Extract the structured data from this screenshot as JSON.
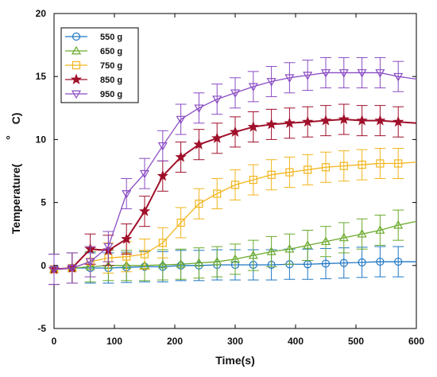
{
  "chart_data": {
    "type": "line",
    "title": "",
    "xlabel": "Time(s)",
    "ylabel_parts": [
      "Temperature(",
      "°",
      "C)"
    ],
    "xlim": [
      0,
      600
    ],
    "ylim": [
      -5,
      20
    ],
    "xticks": [
      "0",
      "100",
      "200",
      "300",
      "400",
      "500",
      "600"
    ],
    "yticks": [
      "-5",
      "0",
      "5",
      "10",
      "15",
      "20"
    ],
    "legend_position": "top-left",
    "grid": false,
    "error_bar": 1.2,
    "series": [
      {
        "name": "550 g",
        "color": "#1f77c4",
        "marker": "circle",
        "x": [
          0,
          30,
          60,
          90,
          120,
          150,
          180,
          210,
          240,
          270,
          300,
          330,
          360,
          390,
          420,
          450,
          480,
          510,
          540,
          570,
          600
        ],
        "y": [
          -0.3,
          -0.2,
          -0.2,
          -0.2,
          -0.15,
          -0.1,
          -0.1,
          0.0,
          0.0,
          0.05,
          0.05,
          0.05,
          0.05,
          0.1,
          0.1,
          0.15,
          0.2,
          0.25,
          0.3,
          0.3,
          0.3
        ],
        "marker_x": [
          0,
          30,
          60,
          90,
          120,
          150,
          180,
          210,
          240,
          270,
          300,
          330,
          360,
          390,
          420,
          450,
          480,
          510,
          540,
          570
        ],
        "marker_y": [
          -0.3,
          -0.2,
          -0.2,
          -0.2,
          -0.15,
          -0.1,
          -0.1,
          0.0,
          0.0,
          0.05,
          0.05,
          0.05,
          0.05,
          0.1,
          0.1,
          0.15,
          0.2,
          0.25,
          0.3,
          0.3
        ]
      },
      {
        "name": "650 g",
        "color": "#6aaa2c",
        "marker": "triangle-up",
        "x": [
          0,
          30,
          60,
          90,
          120,
          150,
          180,
          210,
          240,
          270,
          300,
          330,
          360,
          390,
          420,
          450,
          480,
          510,
          540,
          570,
          600
        ],
        "y": [
          -0.3,
          -0.2,
          -0.1,
          0.0,
          0.0,
          0.0,
          0.05,
          0.1,
          0.2,
          0.3,
          0.5,
          0.8,
          1.1,
          1.3,
          1.6,
          1.9,
          2.2,
          2.5,
          2.8,
          3.2,
          3.5
        ],
        "marker_x": [
          0,
          30,
          60,
          90,
          120,
          150,
          180,
          210,
          240,
          270,
          300,
          330,
          360,
          390,
          420,
          450,
          480,
          510,
          540,
          570
        ],
        "marker_y": [
          -0.3,
          -0.2,
          -0.1,
          0.0,
          0.0,
          0.0,
          0.05,
          0.1,
          0.2,
          0.3,
          0.5,
          0.8,
          1.1,
          1.3,
          1.6,
          1.9,
          2.2,
          2.5,
          2.8,
          3.2
        ]
      },
      {
        "name": "750 g",
        "color": "#f2b51c",
        "marker": "square",
        "x": [
          0,
          30,
          60,
          90,
          120,
          150,
          180,
          210,
          240,
          270,
          300,
          330,
          360,
          390,
          420,
          450,
          480,
          510,
          540,
          570,
          600
        ],
        "y": [
          -0.3,
          -0.2,
          0.3,
          0.6,
          0.7,
          0.9,
          1.8,
          3.4,
          4.9,
          5.7,
          6.4,
          6.8,
          7.2,
          7.4,
          7.6,
          7.8,
          7.9,
          8.0,
          8.1,
          8.1,
          8.2
        ],
        "marker_x": [
          0,
          30,
          60,
          90,
          120,
          150,
          180,
          210,
          240,
          270,
          300,
          330,
          360,
          390,
          420,
          450,
          480,
          510,
          540,
          570
        ],
        "marker_y": [
          -0.3,
          -0.2,
          0.3,
          0.6,
          0.7,
          0.9,
          1.8,
          3.4,
          4.9,
          5.7,
          6.4,
          6.8,
          7.2,
          7.4,
          7.6,
          7.8,
          7.9,
          8.0,
          8.1,
          8.1
        ]
      },
      {
        "name": "850 g",
        "color": "#a0102a",
        "marker": "star",
        "x": [
          0,
          30,
          60,
          90,
          120,
          150,
          180,
          210,
          240,
          270,
          300,
          330,
          360,
          390,
          420,
          450,
          480,
          510,
          540,
          570,
          600
        ],
        "y": [
          -0.3,
          -0.2,
          1.3,
          1.2,
          2.1,
          4.3,
          7.1,
          8.6,
          9.6,
          10.1,
          10.6,
          11.0,
          11.2,
          11.3,
          11.4,
          11.5,
          11.6,
          11.5,
          11.5,
          11.4,
          11.3
        ],
        "marker_x": [
          0,
          30,
          60,
          90,
          120,
          150,
          180,
          210,
          240,
          270,
          300,
          330,
          360,
          390,
          420,
          450,
          480,
          510,
          540,
          570
        ],
        "marker_y": [
          -0.3,
          -0.2,
          1.3,
          1.2,
          2.1,
          4.3,
          7.1,
          8.6,
          9.6,
          10.1,
          10.6,
          11.0,
          11.2,
          11.3,
          11.4,
          11.5,
          11.6,
          11.5,
          11.5,
          11.4
        ]
      },
      {
        "name": "950 g",
        "color": "#8a4cc4",
        "marker": "triangle-down",
        "x": [
          0,
          30,
          60,
          90,
          120,
          150,
          180,
          210,
          240,
          270,
          300,
          330,
          360,
          390,
          420,
          450,
          480,
          510,
          540,
          570,
          600
        ],
        "y": [
          -0.3,
          -0.2,
          0.3,
          1.5,
          5.7,
          7.3,
          9.5,
          11.6,
          12.5,
          13.2,
          13.7,
          14.2,
          14.6,
          14.9,
          15.1,
          15.3,
          15.3,
          15.3,
          15.3,
          15.0,
          14.8
        ],
        "marker_x": [
          0,
          30,
          60,
          90,
          120,
          150,
          180,
          210,
          240,
          270,
          300,
          330,
          360,
          390,
          420,
          450,
          480,
          510,
          540,
          570
        ],
        "marker_y": [
          -0.3,
          -0.2,
          0.3,
          1.5,
          5.7,
          7.3,
          9.5,
          11.6,
          12.5,
          13.2,
          13.7,
          14.2,
          14.6,
          14.9,
          15.1,
          15.3,
          15.3,
          15.3,
          15.3,
          15.0
        ]
      }
    ]
  }
}
